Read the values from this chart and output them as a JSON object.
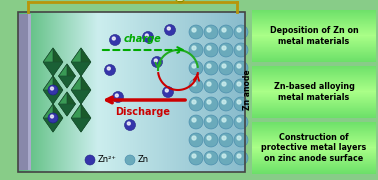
{
  "fig_width": 3.78,
  "fig_height": 1.8,
  "dpi": 100,
  "bg_outer": "#88cc88",
  "main_bg_left": "#66cc88",
  "main_bg_right": "#aaddcc",
  "boxes": [
    {
      "label": "Deposition of Zn on\nmetal materials"
    },
    {
      "label": "Zn-based alloying\nmetal materials"
    },
    {
      "label": "Construction of\nprotective metal layers\non zinc anode surface"
    }
  ],
  "zn_anode_label": "Zn anode",
  "charge_label": "charge",
  "discharge_label": "Discharge",
  "legend_zn2p": "Zn²⁺",
  "legend_zn": "Zn",
  "wire_color": "#b8960b",
  "charge_arrow_color": "#00aa00",
  "discharge_arrow_color": "#cc0000",
  "circle_arrow_color": "#22aa22",
  "cathode_color": "#1a6b2e",
  "anode_ball_color": "#6aaabb",
  "anode_ball_edge": "#4488aa",
  "ion_fill": "#3a3a9a",
  "ion_edge": "#222288",
  "plate_color": "#8888aa",
  "box_bg_bright": "#55dd77",
  "box_bg_dark": "#33bb55",
  "sep_color": "#ccffcc"
}
